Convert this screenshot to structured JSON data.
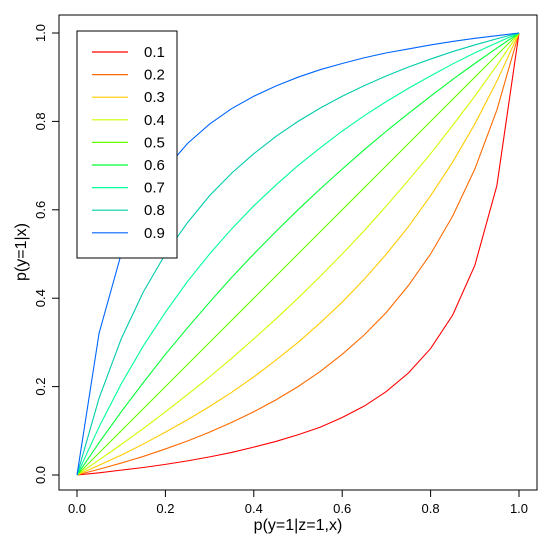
{
  "chart_data": {
    "type": "line",
    "xlabel": "p(y=1|z=1,x)",
    "ylabel": "p(y=1|x)",
    "xlim": [
      0,
      1
    ],
    "ylim": [
      0,
      1
    ],
    "xticks": [
      "0.0",
      "0.2",
      "0.4",
      "0.6",
      "0.8",
      "1.0"
    ],
    "yticks": [
      "0.0",
      "0.2",
      "0.4",
      "0.6",
      "0.8",
      "1.0"
    ],
    "grid": false,
    "legend_position": "top-left",
    "x": [
      0,
      0.05,
      0.1,
      0.15,
      0.2,
      0.25,
      0.3,
      0.35,
      0.4,
      0.45,
      0.5,
      0.55,
      0.6,
      0.65,
      0.7,
      0.75,
      0.8,
      0.85,
      0.9,
      0.95,
      1.0
    ],
    "series": [
      {
        "name": "0.1",
        "color": "#ff0000",
        "values": [
          0,
          0.005,
          0.011,
          0.017,
          0.024,
          0.032,
          0.041,
          0.051,
          0.063,
          0.076,
          0.091,
          0.108,
          0.13,
          0.156,
          0.189,
          0.231,
          0.286,
          0.362,
          0.474,
          0.655,
          1.0
        ]
      },
      {
        "name": "0.2",
        "color": "#ff6a00",
        "values": [
          0,
          0.013,
          0.027,
          0.042,
          0.059,
          0.077,
          0.097,
          0.119,
          0.143,
          0.17,
          0.2,
          0.234,
          0.273,
          0.317,
          0.368,
          0.429,
          0.5,
          0.586,
          0.692,
          0.826,
          1.0
        ]
      },
      {
        "name": "0.3",
        "color": "#ffcc00",
        "values": [
          0,
          0.022,
          0.045,
          0.07,
          0.097,
          0.125,
          0.155,
          0.187,
          0.222,
          0.26,
          0.3,
          0.344,
          0.391,
          0.443,
          0.5,
          0.562,
          0.632,
          0.708,
          0.794,
          0.891,
          1.0
        ]
      },
      {
        "name": "0.4",
        "color": "#ccff00",
        "values": [
          0,
          0.034,
          0.069,
          0.105,
          0.143,
          0.182,
          0.222,
          0.264,
          0.308,
          0.353,
          0.4,
          0.449,
          0.5,
          0.553,
          0.609,
          0.667,
          0.727,
          0.791,
          0.857,
          0.927,
          1.0
        ]
      },
      {
        "name": "0.5",
        "color": "#66ff00",
        "values": [
          0,
          0.05,
          0.1,
          0.15,
          0.2,
          0.25,
          0.3,
          0.35,
          0.4,
          0.45,
          0.5,
          0.55,
          0.6,
          0.65,
          0.7,
          0.75,
          0.8,
          0.85,
          0.9,
          0.95,
          1.0
        ]
      },
      {
        "name": "0.6",
        "color": "#00ff33",
        "values": [
          0,
          0.073,
          0.143,
          0.209,
          0.273,
          0.333,
          0.391,
          0.447,
          0.5,
          0.551,
          0.6,
          0.647,
          0.692,
          0.736,
          0.778,
          0.818,
          0.857,
          0.895,
          0.931,
          0.966,
          1.0
        ]
      },
      {
        "name": "0.7",
        "color": "#00ff99",
        "values": [
          0,
          0.109,
          0.206,
          0.292,
          0.368,
          0.438,
          0.5,
          0.557,
          0.609,
          0.656,
          0.7,
          0.74,
          0.778,
          0.813,
          0.845,
          0.875,
          0.903,
          0.93,
          0.955,
          0.978,
          1.0
        ]
      },
      {
        "name": "0.8",
        "color": "#00ccaa",
        "values": [
          0,
          0.174,
          0.308,
          0.414,
          0.5,
          0.571,
          0.632,
          0.683,
          0.727,
          0.766,
          0.8,
          0.83,
          0.857,
          0.881,
          0.903,
          0.923,
          0.941,
          0.958,
          0.973,
          0.987,
          1.0
        ]
      },
      {
        "name": "0.9",
        "color": "#0066ff",
        "values": [
          0,
          0.321,
          0.5,
          0.614,
          0.692,
          0.75,
          0.794,
          0.829,
          0.857,
          0.88,
          0.9,
          0.917,
          0.931,
          0.944,
          0.955,
          0.964,
          0.973,
          0.981,
          0.988,
          0.994,
          1.0
        ]
      }
    ]
  }
}
